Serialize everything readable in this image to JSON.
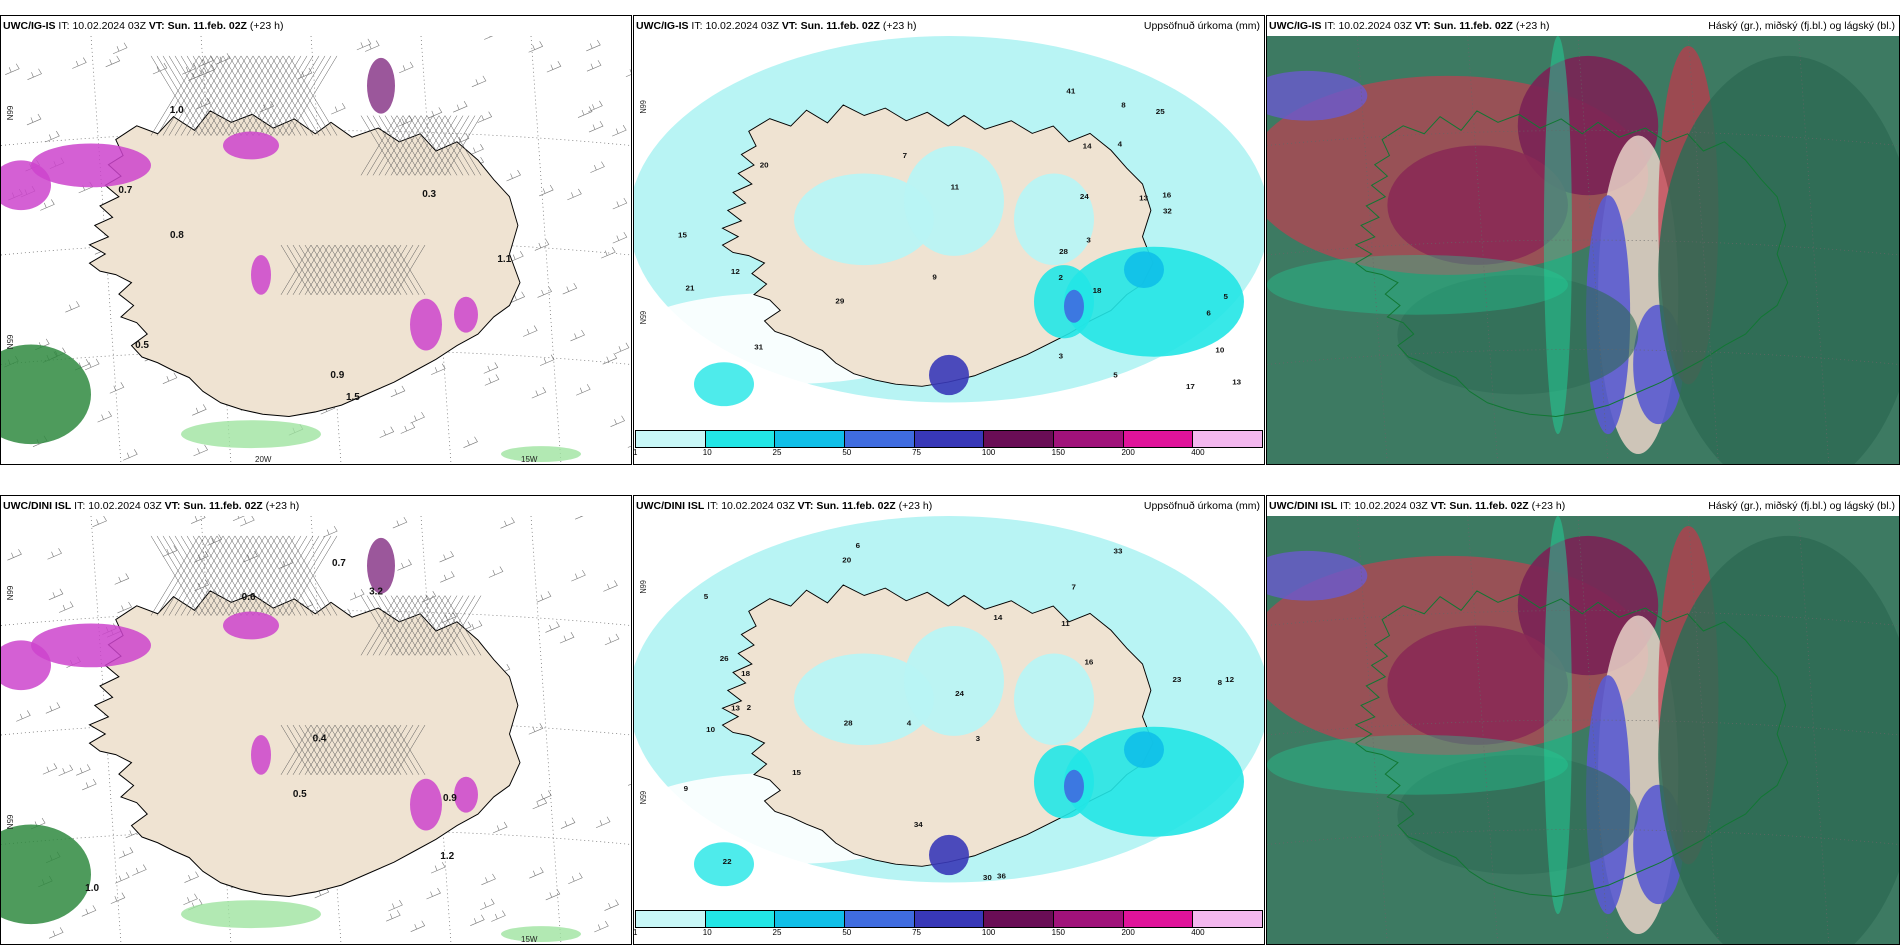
{
  "panels": [
    {
      "id": "p1",
      "model": "UWC/IG-IS",
      "it_label": "IT:",
      "it_value": "10.02.2024 03Z",
      "vt_label": "VT:",
      "vt_value": "Sun. 11.feb. 02Z",
      "lead": "(+23 h)",
      "right_title": "",
      "lon_labels": [
        "20W",
        "15W"
      ],
      "lat_labels": [
        "66N",
        "65N"
      ]
    },
    {
      "id": "p2",
      "model": "UWC/IG-IS",
      "it_label": "IT:",
      "it_value": "10.02.2024 03Z",
      "vt_label": "VT:",
      "vt_value": "Sun. 11.feb. 02Z",
      "lead": "(+23 h)",
      "right_title": "Uppsöfnuð úrkoma (mm)",
      "lat_labels": [
        "66N",
        "65N"
      ]
    },
    {
      "id": "p3",
      "model": "UWC/IG-IS",
      "it_label": "IT:",
      "it_value": "10.02.2024 03Z",
      "vt_label": "VT:",
      "vt_value": "Sun. 11.feb. 02Z",
      "lead": "(+23 h)",
      "right_title": "Háský (gr.), miðský (fj.bl.) og lágský (bl.)"
    },
    {
      "id": "p4",
      "model": "UWC/DINI ISL",
      "it_label": "IT:",
      "it_value": "10.02.2024 03Z",
      "vt_label": "VT:",
      "vt_value": "Sun. 11.feb. 02Z",
      "lead": "(+23 h)",
      "right_title": "",
      "lon_labels": [
        "15W"
      ],
      "lat_labels": [
        "66N",
        "65N"
      ]
    },
    {
      "id": "p5",
      "model": "UWC/DINI ISL",
      "it_label": "IT:",
      "it_value": "10.02.2024 03Z",
      "vt_label": "VT:",
      "vt_value": "Sun. 11.feb. 02Z",
      "lead": "(+23 h)",
      "right_title": "Uppsöfnuð úrkoma (mm)",
      "lat_labels": [
        "66N",
        "65N"
      ]
    },
    {
      "id": "p6",
      "model": "UWC/DINI ISL",
      "it_label": "IT:",
      "it_value": "10.02.2024 03Z",
      "vt_label": "VT:",
      "vt_value": "Sun. 11.feb. 02Z",
      "lead": "(+23 h)",
      "right_title": "Háský (gr.), miðský (fj.bl.) og lágský (bl.)"
    }
  ],
  "precip_colorbar": {
    "ticks": [
      "1",
      "10",
      "25",
      "50",
      "75",
      "100",
      "150",
      "200",
      "400"
    ],
    "colors": [
      "#c8f7f7",
      "#22e6e6",
      "#10bfe8",
      "#3f6ce0",
      "#3838b8",
      "#6a0d56",
      "#a0127a",
      "#e0139a",
      "#f4b8ef"
    ]
  },
  "colors": {
    "land": "#efe3d2",
    "sea": "#ffffff",
    "precip_light": "#b8f4f4",
    "precip_mid": "#22e6e6",
    "snow_pink": "#cc44cc",
    "rain_green": "#2f8a3f",
    "cloud_high": "#2e6b55",
    "cloud_mid": "#7a2255",
    "cloud_low": "#5a5ad0"
  },
  "precip_labels_top": [
    "2",
    "5",
    "13",
    "6",
    "3",
    "4",
    "16",
    "11",
    "10",
    "5",
    "3",
    "28",
    "21",
    "18",
    "29",
    "17",
    "25",
    "12",
    "8",
    "7",
    "9",
    "15",
    "24",
    "41",
    "32",
    "31",
    "20",
    "14",
    "13"
  ],
  "precip_labels_bottom": [
    "6",
    "7",
    "8",
    "4",
    "3",
    "2",
    "5",
    "11",
    "10",
    "14",
    "24",
    "22",
    "20",
    "28",
    "30",
    "36",
    "34",
    "33",
    "16",
    "15",
    "18",
    "13",
    "12",
    "23",
    "9",
    "26"
  ],
  "snow_labels_top": [
    "1.5",
    "1.0",
    "0.5",
    "0.7",
    "0.3",
    "0.9",
    "1.1",
    "0.8"
  ],
  "snow_labels_bottom": [
    "1.0",
    "0.9",
    "0.4",
    "0.5",
    "0.6",
    "0.7",
    "1.2",
    "3.2"
  ]
}
